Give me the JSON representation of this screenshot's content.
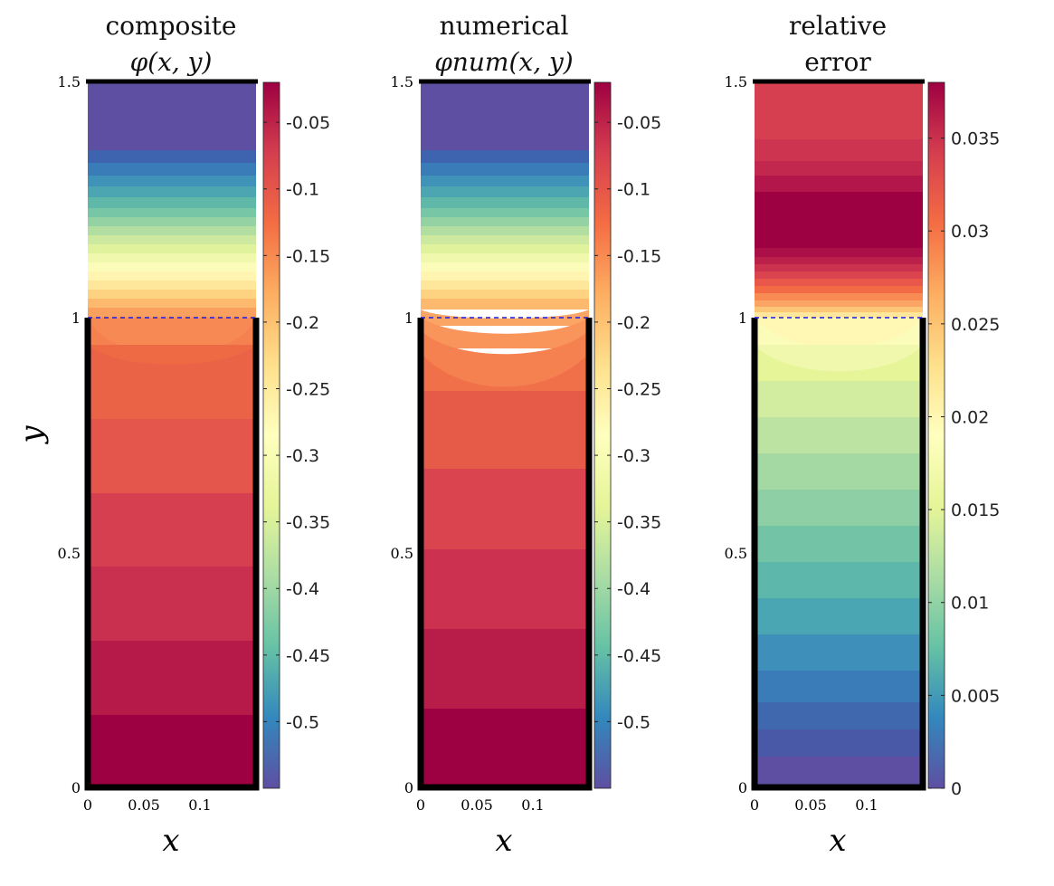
{
  "chart_data": [
    {
      "type": "heatmap",
      "title": [
        "composite",
        "φ(x, y)"
      ],
      "xlabel": "x",
      "ylabel": "y",
      "xlim": [
        0,
        0.15
      ],
      "ylim": [
        0,
        1.5
      ],
      "xticks": [
        "0",
        "0.05",
        "0.1"
      ],
      "yticks": [
        "0",
        "0.5",
        "1",
        "1.5"
      ],
      "interface_y": 1,
      "colorbar": {
        "range": [
          -0.55,
          -0.02
        ],
        "ticks": [
          "-0.05",
          "-0.1",
          "-0.15",
          "-0.2",
          "-0.25",
          "-0.3",
          "-0.35",
          "-0.4",
          "-0.45",
          "-0.5"
        ],
        "tick_values": [
          -0.05,
          -0.1,
          -0.15,
          -0.2,
          -0.25,
          -0.3,
          -0.35,
          -0.4,
          -0.45,
          -0.5
        ]
      }
    },
    {
      "type": "heatmap",
      "title": [
        "numerical",
        "φnum(x, y)"
      ],
      "xlabel": "x",
      "ylabel": "",
      "xlim": [
        0,
        0.15
      ],
      "ylim": [
        0,
        1.5
      ],
      "xticks": [
        "0",
        "0.05",
        "0.1"
      ],
      "yticks": [
        "0",
        "0.5",
        "1",
        "1.5"
      ],
      "interface_y": 1,
      "colorbar": {
        "range": [
          -0.55,
          -0.02
        ],
        "ticks": [
          "-0.05",
          "-0.1",
          "-0.15",
          "-0.2",
          "-0.25",
          "-0.3",
          "-0.35",
          "-0.4",
          "-0.45",
          "-0.5"
        ],
        "tick_values": [
          -0.05,
          -0.1,
          -0.15,
          -0.2,
          -0.25,
          -0.3,
          -0.35,
          -0.4,
          -0.45,
          -0.5
        ]
      }
    },
    {
      "type": "heatmap",
      "title": [
        "relative",
        "error"
      ],
      "xlabel": "x",
      "ylabel": "",
      "xlim": [
        0,
        0.15
      ],
      "ylim": [
        0,
        1.5
      ],
      "xticks": [
        "0",
        "0.05",
        "0.1"
      ],
      "yticks": [
        "0",
        "0.5",
        "1",
        "1.5"
      ],
      "interface_y": 1,
      "colorbar": {
        "range": [
          0,
          0.038
        ],
        "ticks": [
          "0",
          "0.005",
          "0.01",
          "0.015",
          "0.02",
          "0.025",
          "0.03",
          "0.035"
        ],
        "tick_values": [
          0,
          0.005,
          0.01,
          0.015,
          0.02,
          0.025,
          0.03,
          0.035
        ]
      }
    }
  ]
}
